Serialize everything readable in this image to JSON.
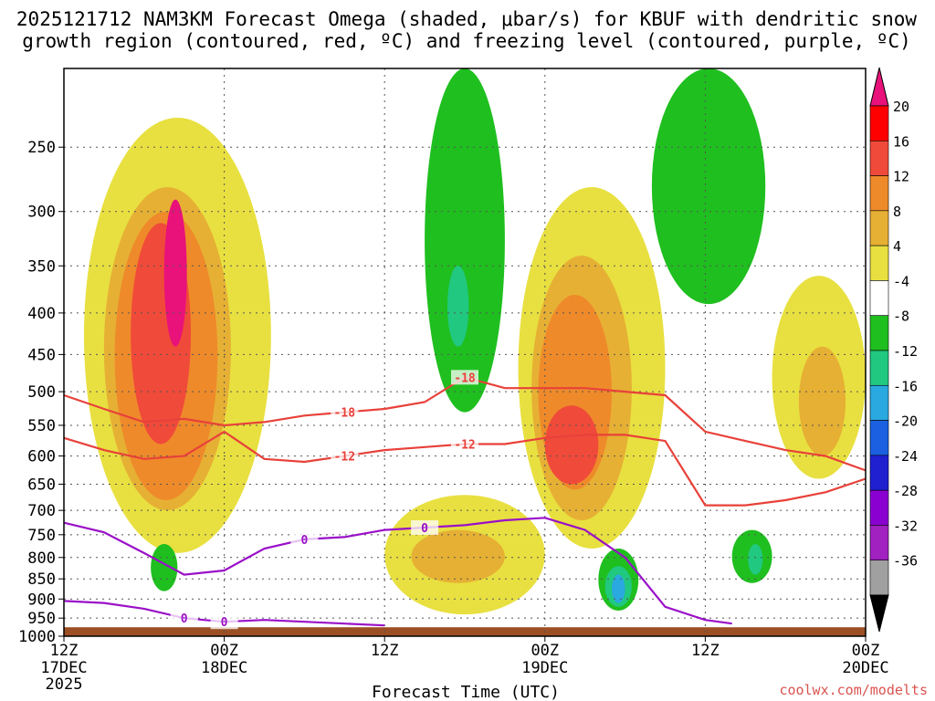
{
  "chart_data": {
    "type": "heatmap",
    "title_line1": "2025121712 NAM3KM Forecast Omega (shaded, μbar/s) for KBUF with dendritic snow",
    "title_line2": "growth region (contoured, red, ºC) and freezing level (contoured, purple, ºC)",
    "xlabel": "Forecast Time (UTC)",
    "ylabel": "",
    "credit": "coolwx.com/modelts",
    "x_ticks": [
      {
        "hour": 0,
        "l1": "12Z",
        "l2": "17DEC",
        "l3": "2025"
      },
      {
        "hour": 12,
        "l1": "00Z",
        "l2": "18DEC",
        "l3": ""
      },
      {
        "hour": 24,
        "l1": "12Z",
        "l2": "",
        "l3": ""
      },
      {
        "hour": 36,
        "l1": "00Z",
        "l2": "19DEC",
        "l3": ""
      },
      {
        "hour": 48,
        "l1": "12Z",
        "l2": "",
        "l3": ""
      },
      {
        "hour": 60,
        "l1": "00Z",
        "l2": "20DEC",
        "l3": ""
      }
    ],
    "x_range_hours": [
      0,
      60
    ],
    "y_ticks": [
      250,
      300,
      350,
      400,
      450,
      500,
      550,
      600,
      650,
      700,
      750,
      800,
      850,
      900,
      950,
      1000
    ],
    "y_range_hpa": [
      200,
      1000
    ],
    "colorbar": {
      "labels": [
        "20",
        "16",
        "12",
        "8",
        "4",
        "-4",
        "-8",
        "-12",
        "-16",
        "-20",
        "-24",
        "-28",
        "-32",
        "-36"
      ],
      "colors": [
        "#ff0000",
        "#f04a3a",
        "#ee8a2a",
        "#e6b034",
        "#e8e040",
        "#ffffff",
        "#1fbf1f",
        "#20c880",
        "#2aa8e0",
        "#1a60e0",
        "#2020d0",
        "#8a00d0",
        "#a020c0",
        "#a0a0a0"
      ],
      "top_color": "#e8127a",
      "bottom_color": "#000000"
    },
    "contours": [
      {
        "name": "dgz-minus-18",
        "color": "#e8413a",
        "label": "-18",
        "hours": [
          0,
          3,
          6,
          9,
          12,
          15,
          18,
          21,
          24,
          27,
          30,
          33,
          36,
          39,
          42,
          45,
          48,
          51,
          54,
          57,
          60
        ],
        "hpa": [
          505,
          525,
          545,
          540,
          550,
          545,
          535,
          530,
          525,
          515,
          480,
          495,
          495,
          495,
          500,
          505,
          560,
          575,
          590,
          600,
          625
        ]
      },
      {
        "name": "dgz-minus-12",
        "color": "#e8413a",
        "label": "-12",
        "hours": [
          0,
          3,
          6,
          9,
          12,
          15,
          18,
          21,
          24,
          27,
          30,
          33,
          36,
          39,
          42,
          45,
          48,
          51,
          54,
          57,
          60
        ],
        "hpa": [
          570,
          590,
          605,
          600,
          560,
          605,
          610,
          600,
          590,
          585,
          580,
          580,
          570,
          565,
          565,
          575,
          690,
          690,
          680,
          665,
          640
        ]
      },
      {
        "name": "freezing-level-upper",
        "color": "#9a10c8",
        "label": "0",
        "hours": [
          0,
          3,
          6,
          9,
          12,
          15,
          18,
          21,
          24,
          27,
          30,
          33,
          36,
          39,
          42,
          45,
          48,
          50
        ],
        "hpa": [
          725,
          745,
          790,
          840,
          830,
          780,
          760,
          755,
          740,
          735,
          730,
          720,
          715,
          740,
          800,
          920,
          955,
          965
        ]
      },
      {
        "name": "freezing-level-lower",
        "color": "#9a10c8",
        "label": "0",
        "hours": [
          0,
          3,
          6,
          9,
          12,
          15,
          18,
          21,
          24
        ],
        "hpa": [
          905,
          910,
          925,
          950,
          960,
          955,
          960,
          965,
          970
        ]
      }
    ],
    "omega_regions": [
      {
        "label": "4",
        "color": "#e8e040",
        "h0": 1.5,
        "h1": 15.5,
        "p0": 230,
        "p1": 790
      },
      {
        "label": "8",
        "color": "#e6b034",
        "h0": 3.0,
        "h1": 12.5,
        "p0": 280,
        "p1": 700
      },
      {
        "label": "12",
        "color": "#ee8a2a",
        "h0": 3.8,
        "h1": 11.5,
        "p0": 300,
        "p1": 680
      },
      {
        "label": "16",
        "color": "#f04a3a",
        "h0": 5.0,
        "h1": 9.5,
        "p0": 310,
        "p1": 580
      },
      {
        "label": "20",
        "color": "#e8127a",
        "h0": 7.5,
        "h1": 9.2,
        "p0": 290,
        "p1": 440
      },
      {
        "label": "4",
        "color": "#e8e040",
        "h0": 34.0,
        "h1": 45.0,
        "p0": 280,
        "p1": 780
      },
      {
        "label": "8",
        "color": "#e6b034",
        "h0": 35.0,
        "h1": 42.5,
        "p0": 340,
        "p1": 720
      },
      {
        "label": "12",
        "color": "#ee8a2a",
        "h0": 35.5,
        "h1": 41.0,
        "p0": 380,
        "p1": 660
      },
      {
        "label": "16",
        "color": "#f04a3a",
        "h0": 36.0,
        "h1": 40.0,
        "p0": 520,
        "p1": 650
      },
      {
        "label": "4",
        "color": "#e8e040",
        "h0": 24.0,
        "h1": 36.0,
        "p0": 670,
        "p1": 940
      },
      {
        "label": "8",
        "color": "#e6b034",
        "h0": 26.0,
        "h1": 33.0,
        "p0": 740,
        "p1": 860
      },
      {
        "label": "4",
        "color": "#e8e040",
        "h0": 53.0,
        "h1": 60.0,
        "p0": 360,
        "p1": 640
      },
      {
        "label": "8",
        "color": "#e6b034",
        "h0": 55.0,
        "h1": 58.5,
        "p0": 440,
        "p1": 600
      },
      {
        "label": "-4",
        "color": "#1fbf1f",
        "h0": 27.0,
        "h1": 33.0,
        "p0": 200,
        "p1": 530
      },
      {
        "label": "-8",
        "color": "#20c880",
        "h0": 28.7,
        "h1": 30.3,
        "p0": 350,
        "p1": 440
      },
      {
        "label": "-4",
        "color": "#1fbf1f",
        "h0": 44.0,
        "h1": 52.5,
        "p0": 200,
        "p1": 390
      },
      {
        "label": "-4",
        "color": "#1fbf1f",
        "h0": 40.0,
        "h1": 43.0,
        "p0": 780,
        "p1": 930
      },
      {
        "label": "-12",
        "color": "#20c880",
        "h0": 40.5,
        "h1": 42.5,
        "p0": 820,
        "p1": 920
      },
      {
        "label": "-16",
        "color": "#2aa8e0",
        "h0": 41.0,
        "h1": 42.0,
        "p0": 840,
        "p1": 910
      },
      {
        "label": "-4",
        "color": "#1fbf1f",
        "h0": 50.0,
        "h1": 53.0,
        "p0": 740,
        "p1": 860
      },
      {
        "label": "-8",
        "color": "#20c880",
        "h0": 51.2,
        "h1": 52.3,
        "p0": 770,
        "p1": 840
      },
      {
        "label": "-4",
        "color": "#1fbf1f",
        "h0": 6.5,
        "h1": 8.5,
        "p0": 770,
        "p1": 880
      }
    ],
    "ground_top_hpa": 975
  }
}
